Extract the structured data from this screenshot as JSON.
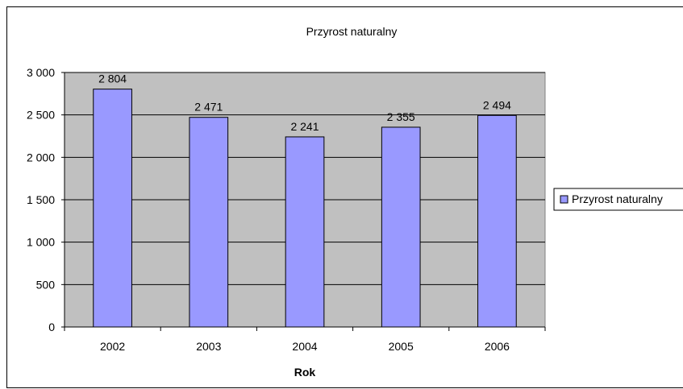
{
  "chart_data": {
    "type": "bar",
    "title": "Przyrost naturalny",
    "xlabel": "Rok",
    "ylabel": "",
    "categories": [
      "2002",
      "2003",
      "2004",
      "2005",
      "2006"
    ],
    "series": [
      {
        "name": "Przyrost naturalny",
        "values": [
          2804,
          2471,
          2241,
          2355,
          2494
        ],
        "labels": [
          "2 804",
          "2 471",
          "2 241",
          "2 355",
          "2 494"
        ]
      }
    ],
    "ylim": [
      0,
      3000
    ],
    "yticks": [
      0,
      500,
      1000,
      1500,
      2000,
      2500,
      3000
    ],
    "ytick_labels": [
      "0",
      "500",
      "1 000",
      "1 500",
      "2 000",
      "2 500",
      "3 000"
    ],
    "grid": true,
    "legend_position": "right",
    "colors": {
      "bar_fill": "#9999FF",
      "bar_stroke": "#000000",
      "plot_background": "#C0C0C0",
      "gridline": "#000000"
    }
  }
}
